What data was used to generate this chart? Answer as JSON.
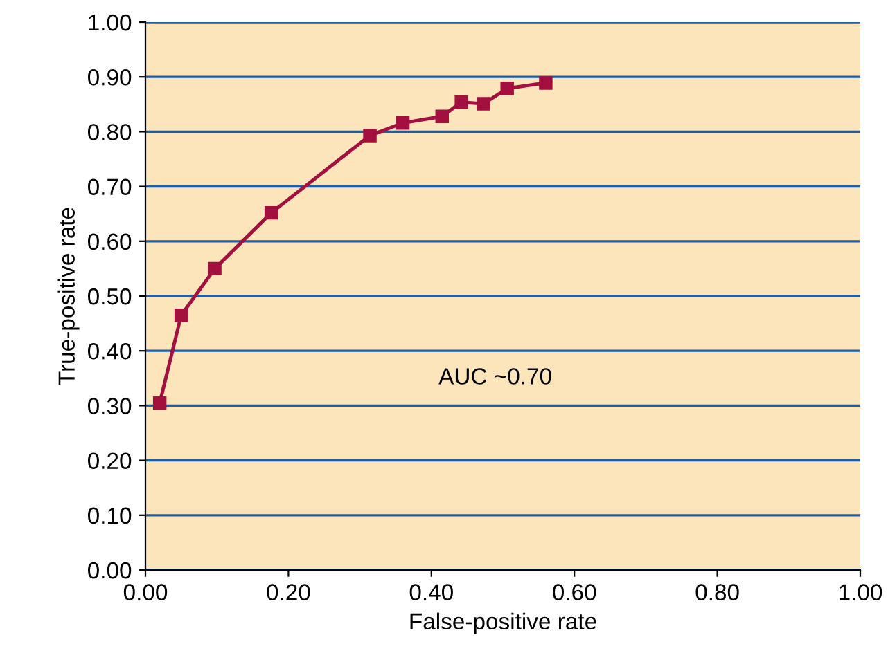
{
  "chart_data": {
    "type": "line",
    "xlabel": "False-positive rate",
    "ylabel": "True-positive rate",
    "x": [
      0.02,
      0.05,
      0.097,
      0.176,
      0.314,
      0.36,
      0.415,
      0.442,
      0.473,
      0.506,
      0.56
    ],
    "series": [
      {
        "color": "#a3103f",
        "values": [
          0.305,
          0.465,
          0.55,
          0.652,
          0.793,
          0.816,
          0.828,
          0.854,
          0.851,
          0.879,
          0.889
        ]
      }
    ],
    "xlim": [
      0,
      1
    ],
    "ylim": [
      0,
      1
    ],
    "xticks": [
      {
        "value": 0,
        "label": "0.00"
      },
      {
        "value": 0.2,
        "label": "0.20"
      },
      {
        "value": 0.4,
        "label": "0.40"
      },
      {
        "value": 0.6,
        "label": "0.60"
      },
      {
        "value": 0.8,
        "label": "0.80"
      },
      {
        "value": 1,
        "label": "1.00"
      }
    ],
    "yticks": [
      {
        "value": 0,
        "label": "0.00"
      },
      {
        "value": 0.1,
        "label": "0.10"
      },
      {
        "value": 0.2,
        "label": "0.20"
      },
      {
        "value": 0.3,
        "label": "0.30"
      },
      {
        "value": 0.4,
        "label": "0.40"
      },
      {
        "value": 0.5,
        "label": "0.50"
      },
      {
        "value": 0.6,
        "label": "0.60"
      },
      {
        "value": 0.7,
        "label": "0.70"
      },
      {
        "value": 0.8,
        "label": "0.80"
      },
      {
        "value": 0.9,
        "label": "0.90"
      },
      {
        "value": 1,
        "label": "1.00"
      }
    ],
    "annotations": [
      "AUC ~0.70"
    ],
    "grid": "y",
    "marker": "square",
    "line_style": "solid",
    "legend": false
  }
}
